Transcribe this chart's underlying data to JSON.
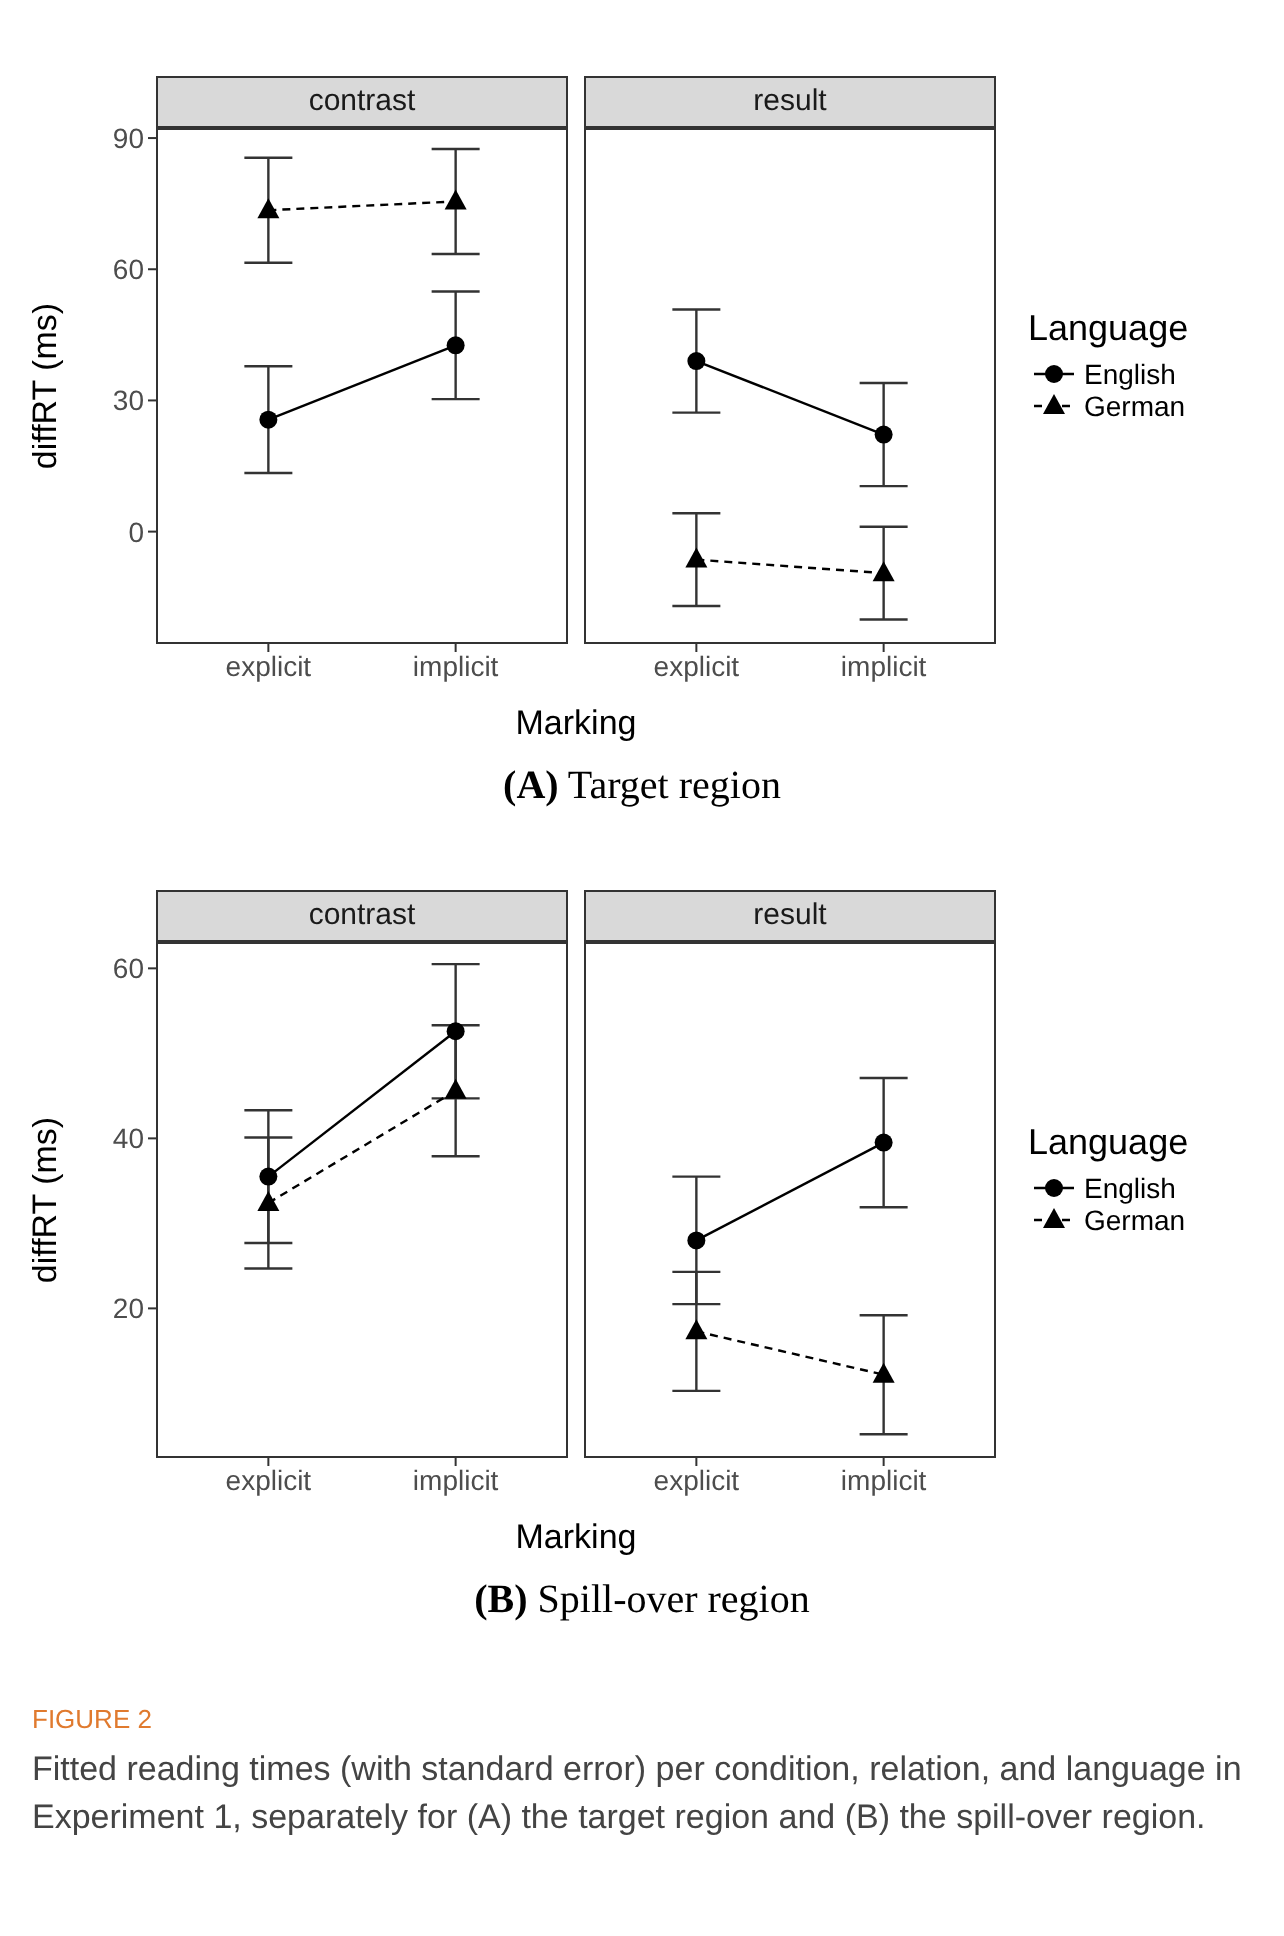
{
  "chart_data": [
    {
      "type": "line",
      "title": "contrast",
      "xlabel": "Marking",
      "ylabel": "diffRT (ms)",
      "categories": [
        "explicit",
        "implicit"
      ],
      "ylim": [
        -25.7,
        92.3
      ],
      "yticks": [
        0,
        30,
        60,
        90
      ],
      "annotations": [
        "(A) Target region"
      ],
      "series": [
        {
          "color": "#000000",
          "marker": "circle",
          "line_style": "solid",
          "values": [
            25.6,
            42.6
          ],
          "errors": [
            12.2,
            12.3
          ]
        },
        {
          "color": "#000000",
          "marker": "triangle",
          "line_style": "dashed",
          "values": [
            73.5,
            75.5
          ],
          "errors": [
            12,
            12
          ]
        }
      ]
    },
    {
      "type": "line",
      "title": "result",
      "categories": [
        "explicit",
        "implicit"
      ],
      "ylim": [
        -25.7,
        92.3
      ],
      "yticks": [
        0,
        30,
        60,
        90
      ],
      "tick_labels": "x",
      "legend": "right",
      "legend_title": "Language",
      "series": [
        {
          "name": "English",
          "color": "#000000",
          "marker": "circle",
          "line_style": "solid",
          "values": [
            39,
            22.2
          ],
          "errors": [
            11.8,
            11.8
          ]
        },
        {
          "name": "German",
          "color": "#000000",
          "marker": "triangle",
          "line_style": "dashed",
          "values": [
            -6.4,
            -9.5
          ],
          "errors": [
            10.6,
            10.6
          ]
        }
      ]
    },
    {
      "type": "line",
      "title": "contrast",
      "xlabel": "Marking",
      "ylabel": "diffRT (ms)",
      "categories": [
        "explicit",
        "implicit"
      ],
      "ylim": [
        2.4,
        63.1
      ],
      "yticks": [
        20,
        40,
        60
      ],
      "annotations": [
        "(B) Spill-over region",
        "FIGURE 2",
        "Fitted reading times (with standard error) per condition, relation, and language in Experiment 1, separately for (A) the target region and (B) the spill-over region."
      ],
      "series": [
        {
          "color": "#000000",
          "marker": "circle",
          "line_style": "solid",
          "values": [
            35.5,
            52.6
          ],
          "errors": [
            7.8,
            7.9
          ]
        },
        {
          "color": "#000000",
          "marker": "triangle",
          "line_style": "dashed",
          "values": [
            32.4,
            45.6
          ],
          "errors": [
            7.7,
            7.7
          ]
        }
      ]
    },
    {
      "type": "line",
      "title": "result",
      "categories": [
        "explicit",
        "implicit"
      ],
      "ylim": [
        2.4,
        63.1
      ],
      "yticks": [
        20,
        40,
        60
      ],
      "tick_labels": "x",
      "legend": "right",
      "legend_title": "Language",
      "series": [
        {
          "name": "English",
          "color": "#000000",
          "marker": "circle",
          "line_style": "solid",
          "values": [
            28,
            39.5
          ],
          "errors": [
            7.5,
            7.6
          ]
        },
        {
          "name": "German",
          "color": "#000000",
          "marker": "triangle",
          "line_style": "dashed",
          "values": [
            17.3,
            12.2
          ],
          "errors": [
            7,
            7
          ]
        }
      ]
    }
  ]
}
